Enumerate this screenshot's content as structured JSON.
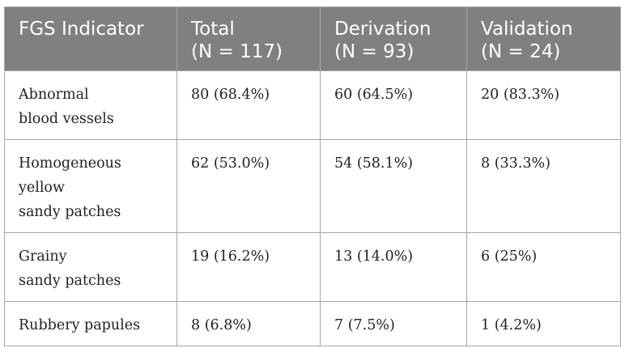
{
  "table": {
    "headers": [
      {
        "line1": "FGS Indicator",
        "line2": ""
      },
      {
        "line1": "Total",
        "line2": "(N = 117)"
      },
      {
        "line1": "Derivation",
        "line2": "(N = 93)"
      },
      {
        "line1": "Validation",
        "line2": "(N = 24)"
      }
    ],
    "rows": [
      {
        "indicator": [
          "Abnormal",
          "blood vessels"
        ],
        "total": "80 (68.4%)",
        "derivation": "60 (64.5%)",
        "validation": "20 (83.3%)"
      },
      {
        "indicator": [
          "Homogeneous",
          "yellow",
          "sandy patches"
        ],
        "total": "62 (53.0%)",
        "derivation": "54 (58.1%)",
        "validation": "8 (33.3%)"
      },
      {
        "indicator": [
          "Grainy",
          "sandy patches"
        ],
        "total": "19 (16.2%)",
        "derivation": "13 (14.0%)",
        "validation": "6 (25%)"
      },
      {
        "indicator": [
          "Rubbery papules"
        ],
        "total": "8 (6.8%)",
        "derivation": "7 (7.5%)",
        "validation": "1 (4.2%)"
      }
    ]
  },
  "colors": {
    "header_bg": "#808080",
    "header_text": "#ffffff",
    "border": "#a6a6a6",
    "body_text": "#222222"
  }
}
